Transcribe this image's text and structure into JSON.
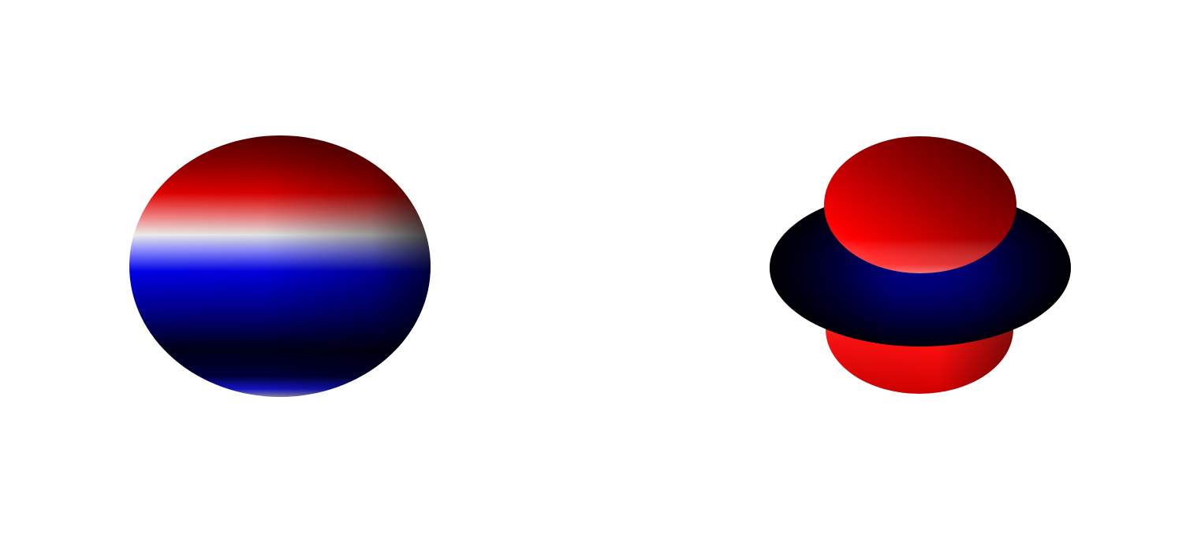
{
  "figures": [
    {
      "id": "left-sphere",
      "kind": "sphere",
      "colors": {
        "positive": "#e00000",
        "positive_dark": "#5a0000",
        "neutral": "#ececec",
        "negative": "#0000e6",
        "negative_dark": "#000018"
      }
    },
    {
      "id": "right-dz2-orbital",
      "kind": "dz2-orbital",
      "colors": {
        "lobe_positive": "#ff1a1a",
        "lobe_positive_dark": "#560000",
        "torus_negative": "#00007a",
        "torus_negative_dark": "#00000a"
      }
    }
  ]
}
